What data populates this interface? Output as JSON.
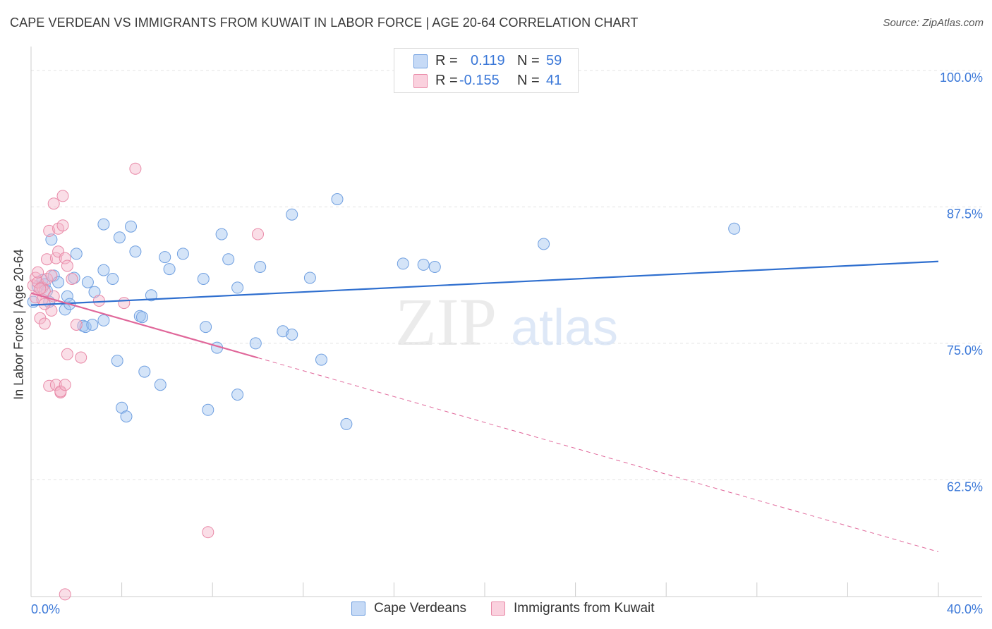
{
  "header": {
    "title": "CAPE VERDEAN VS IMMIGRANTS FROM KUWAIT IN LABOR FORCE | AGE 20-64 CORRELATION CHART",
    "source": "Source: ZipAtlas.com"
  },
  "watermark": {
    "zip": "ZIP",
    "atlas": "atlas"
  },
  "legend": {
    "rows": [
      {
        "r_label": "R =",
        "r_value": "0.119",
        "n_label": "N =",
        "n_value": "59",
        "color": "#9fc3f0"
      },
      {
        "r_label": "R =",
        "r_value": "-0.155",
        "n_label": "N =",
        "n_value": "41",
        "color": "#f5b6c9"
      }
    ]
  },
  "bottom_legend": {
    "items": [
      {
        "label": "Cape Verdeans",
        "color": "#9fc3f0"
      },
      {
        "label": "Immigrants from Kuwait",
        "color": "#f5b6c9"
      }
    ]
  },
  "chart_data": {
    "type": "scatter",
    "title": "CAPE VERDEAN VS IMMIGRANTS FROM KUWAIT IN LABOR FORCE | AGE 20-64 CORRELATION CHART",
    "xlabel": "",
    "ylabel": "In Labor Force | Age 20-64",
    "xlim": [
      0,
      40
    ],
    "ylim": [
      51.8,
      101.8
    ],
    "x_tick_labels": [
      {
        "value": 0,
        "label": "0.0%"
      },
      {
        "value": 40,
        "label": "40.0%"
      }
    ],
    "y_ticks": [
      {
        "value": 100,
        "label": "100.0%"
      },
      {
        "value": 87.5,
        "label": "87.5%"
      },
      {
        "value": 75,
        "label": "75.0%"
      },
      {
        "value": 62.5,
        "label": "62.5%"
      }
    ],
    "x_minor_ticks": [
      0,
      4,
      8,
      12,
      16,
      20,
      24,
      28,
      32,
      36,
      40
    ],
    "grid": true,
    "series": [
      {
        "name": "Cape Verdeans",
        "color": "#9fc3f0",
        "stroke": "#6f9fe0",
        "trend": {
          "x": [
            0,
            40
          ],
          "y": [
            78.5,
            82.5
          ],
          "color": "#2f6fcf",
          "dashed_from": null
        },
        "points": [
          [
            0.1,
            78.8
          ],
          [
            0.3,
            80.2
          ],
          [
            0.5,
            80.8
          ],
          [
            0.6,
            80.4
          ],
          [
            0.7,
            79.8
          ],
          [
            0.8,
            78.8
          ],
          [
            0.9,
            84.5
          ],
          [
            1.0,
            81.2
          ],
          [
            1.2,
            80.6
          ],
          [
            1.5,
            78.1
          ],
          [
            1.6,
            79.3
          ],
          [
            1.7,
            78.6
          ],
          [
            1.9,
            81.0
          ],
          [
            2.0,
            83.2
          ],
          [
            2.3,
            76.6
          ],
          [
            2.4,
            76.5
          ],
          [
            2.5,
            80.6
          ],
          [
            2.7,
            76.7
          ],
          [
            2.8,
            79.7
          ],
          [
            3.2,
            81.7
          ],
          [
            3.2,
            77.1
          ],
          [
            3.2,
            85.9
          ],
          [
            3.6,
            80.9
          ],
          [
            3.8,
            73.4
          ],
          [
            3.9,
            84.7
          ],
          [
            4.0,
            69.1
          ],
          [
            4.2,
            68.3
          ],
          [
            4.4,
            85.7
          ],
          [
            4.6,
            83.4
          ],
          [
            4.8,
            77.5
          ],
          [
            4.9,
            77.4
          ],
          [
            5.0,
            72.4
          ],
          [
            5.3,
            79.4
          ],
          [
            5.7,
            71.2
          ],
          [
            5.9,
            82.9
          ],
          [
            6.1,
            81.8
          ],
          [
            6.7,
            83.2
          ],
          [
            7.6,
            80.9
          ],
          [
            7.7,
            76.5
          ],
          [
            7.8,
            68.9
          ],
          [
            8.2,
            74.6
          ],
          [
            8.4,
            85.0
          ],
          [
            8.7,
            82.7
          ],
          [
            9.1,
            80.1
          ],
          [
            9.1,
            70.3
          ],
          [
            9.9,
            75.0
          ],
          [
            10.1,
            82.0
          ],
          [
            11.1,
            76.1
          ],
          [
            11.5,
            75.8
          ],
          [
            11.5,
            86.8
          ],
          [
            12.3,
            81.0
          ],
          [
            12.8,
            73.5
          ],
          [
            13.5,
            88.2
          ],
          [
            13.9,
            67.6
          ],
          [
            16.4,
            82.3
          ],
          [
            17.3,
            82.2
          ],
          [
            17.8,
            82.0
          ],
          [
            22.6,
            84.1
          ],
          [
            31.0,
            85.5
          ]
        ]
      },
      {
        "name": "Immigrants from Kuwait",
        "color": "#f5b6c9",
        "stroke": "#e98aa8",
        "trend": {
          "x": [
            0,
            40
          ],
          "y": [
            79.6,
            55.9
          ],
          "color": "#e0679a",
          "dashed_from": 10
        },
        "points": [
          [
            0.1,
            80.3
          ],
          [
            0.2,
            81.0
          ],
          [
            0.2,
            79.2
          ],
          [
            0.3,
            80.6
          ],
          [
            0.4,
            77.3
          ],
          [
            0.5,
            80.1
          ],
          [
            0.5,
            79.0
          ],
          [
            0.6,
            79.8
          ],
          [
            0.6,
            76.8
          ],
          [
            0.7,
            80.9
          ],
          [
            0.7,
            82.7
          ],
          [
            0.8,
            85.3
          ],
          [
            0.8,
            71.1
          ],
          [
            0.9,
            81.2
          ],
          [
            0.9,
            78.0
          ],
          [
            1.0,
            79.3
          ],
          [
            1.0,
            87.8
          ],
          [
            1.1,
            82.8
          ],
          [
            1.1,
            71.2
          ],
          [
            1.2,
            83.4
          ],
          [
            1.2,
            85.5
          ],
          [
            1.3,
            70.5
          ],
          [
            1.3,
            70.6
          ],
          [
            1.4,
            88.5
          ],
          [
            1.4,
            85.8
          ],
          [
            1.5,
            82.8
          ],
          [
            1.5,
            71.2
          ],
          [
            1.6,
            82.1
          ],
          [
            1.6,
            74.0
          ],
          [
            1.8,
            80.9
          ],
          [
            2.0,
            76.7
          ],
          [
            2.2,
            73.7
          ],
          [
            3.0,
            78.9
          ],
          [
            4.1,
            78.7
          ],
          [
            4.6,
            91.0
          ],
          [
            7.8,
            57.7
          ],
          [
            10.0,
            85.0
          ],
          [
            1.5,
            52.0
          ],
          [
            0.4,
            80.0
          ],
          [
            0.6,
            78.6
          ],
          [
            0.3,
            81.5
          ]
        ]
      }
    ]
  }
}
